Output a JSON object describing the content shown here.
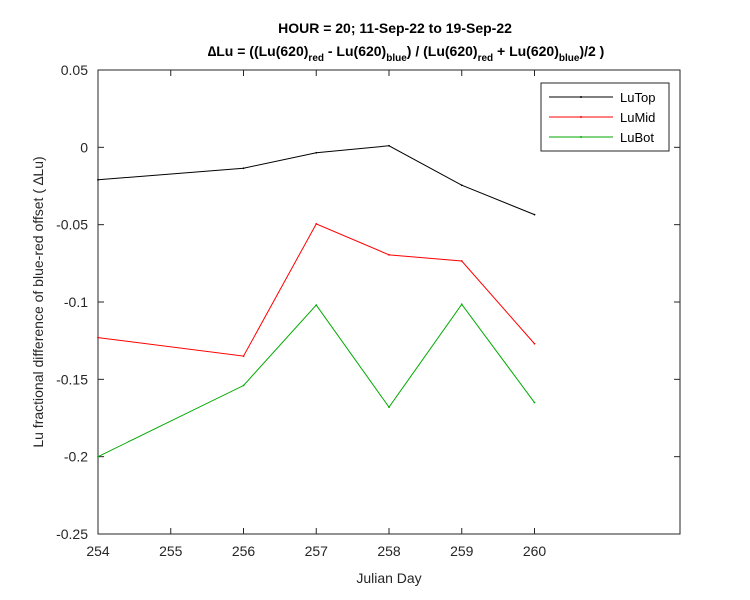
{
  "chart_data": {
    "type": "line",
    "title_line1": "HOUR = 20; 11-Sep-22 to 19-Sep-22",
    "title_line2": {
      "delta": "∆",
      "p1": "Lu = ((Lu(620)",
      "s1": "red",
      "p2": " - Lu(620)",
      "s2": "blue",
      "p3": ") / (Lu(620)",
      "s3": "red",
      "p4": " + Lu(620)",
      "s4": "blue",
      "p5": ")/2  )"
    },
    "xlabel": "Julian Day",
    "ylabel": "Lu fractional difference of blue-red offset (  ∆Lu)",
    "xlim": [
      254,
      262
    ],
    "ylim": [
      -0.25,
      0.05
    ],
    "x_ticks": [
      254,
      255,
      256,
      257,
      258,
      259,
      260
    ],
    "x_tick_labels": [
      "254",
      "255",
      "256",
      "257",
      "258",
      "259",
      "260"
    ],
    "y_ticks": [
      0.05,
      0,
      -0.05,
      -0.1,
      -0.15,
      -0.2,
      -0.25
    ],
    "y_tick_labels": [
      "0.05",
      "0",
      "-0.05",
      "-0.1",
      "-0.15",
      "-0.2",
      "-0.25"
    ],
    "grid": false,
    "legend_position": "top-right",
    "series": [
      {
        "name": "LuTop",
        "color": "#000000",
        "x": [
          254,
          256,
          257,
          258,
          259,
          260
        ],
        "y": [
          -0.021,
          -0.0135,
          -0.0035,
          0.001,
          -0.0245,
          -0.0435
        ]
      },
      {
        "name": "LuMid",
        "color": "#ff0000",
        "x": [
          254,
          256,
          257,
          258,
          259,
          260
        ],
        "y": [
          -0.123,
          -0.135,
          -0.0495,
          -0.0695,
          -0.0735,
          -0.127
        ]
      },
      {
        "name": "LuBot",
        "color": "#00aa00",
        "x": [
          254,
          256,
          257,
          258,
          259,
          260
        ],
        "y": [
          -0.2,
          -0.154,
          -0.102,
          -0.168,
          -0.1015,
          -0.165
        ]
      }
    ]
  }
}
